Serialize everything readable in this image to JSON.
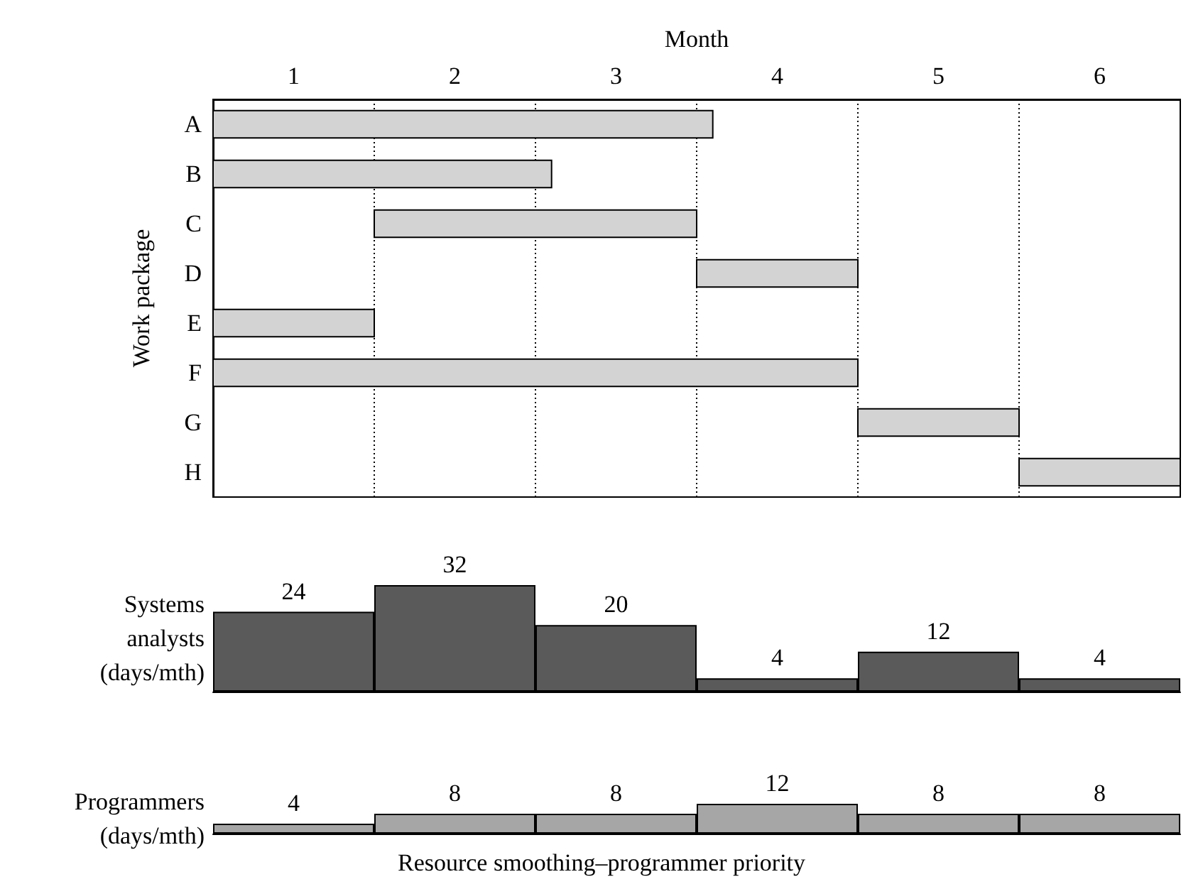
{
  "chart_data": [
    {
      "type": "bar",
      "orientation": "horizontal",
      "xlabel": "Month",
      "ylabel": "Work package",
      "categories": [
        "A",
        "B",
        "C",
        "D",
        "E",
        "F",
        "G",
        "H"
      ],
      "base": [
        0,
        0,
        1,
        3,
        0,
        0,
        4,
        5
      ],
      "values": [
        3.1,
        2.1,
        2,
        1,
        1,
        4,
        1,
        1
      ],
      "color": "#d3d3d3",
      "xlim": [
        0,
        6
      ],
      "xticks": [
        {
          "value": 0.5,
          "label": "1"
        },
        {
          "value": 1.5,
          "label": "2"
        },
        {
          "value": 2.5,
          "label": "3"
        },
        {
          "value": 3.5,
          "label": "4"
        },
        {
          "value": 4.5,
          "label": "5"
        },
        {
          "value": 5.5,
          "label": "6"
        }
      ],
      "ref_lines": [
        {
          "axis": "x",
          "value": 1,
          "line_style": "dotted",
          "color": "#000000"
        },
        {
          "axis": "x",
          "value": 2,
          "line_style": "dotted",
          "color": "#000000"
        },
        {
          "axis": "x",
          "value": 3,
          "line_style": "dotted",
          "color": "#000000"
        },
        {
          "axis": "x",
          "value": 4,
          "line_style": "dotted",
          "color": "#000000"
        },
        {
          "axis": "x",
          "value": 5,
          "line_style": "dotted",
          "color": "#000000"
        }
      ]
    },
    {
      "type": "bar",
      "ylabel": "Systems analysts (days/mth)",
      "categories": [
        null,
        null,
        null,
        null,
        null,
        null
      ],
      "values": [
        24,
        32,
        20,
        4,
        12,
        4
      ],
      "color": "#5a5a5a",
      "data_labels": true
    },
    {
      "type": "bar",
      "ylabel": "Programmers (days/mth)",
      "categories": [
        null,
        null,
        null,
        null,
        null,
        null
      ],
      "values": [
        4,
        8,
        8,
        12,
        8,
        8
      ],
      "color": "#a6a6a6",
      "data_labels": true,
      "annotations": [
        "Resource smoothing–programmer priority"
      ]
    }
  ]
}
